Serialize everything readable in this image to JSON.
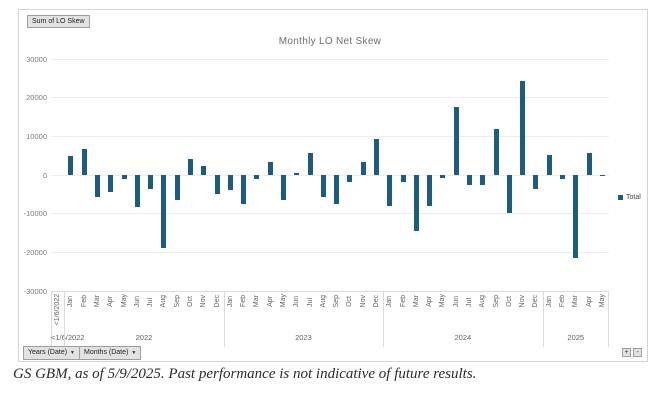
{
  "pivot_controls": {
    "value_field_label": "Sum of LO Skew",
    "years_field_label": "Years (Date)",
    "months_field_label": "Months (Date)",
    "expand_label": "+",
    "collapse_label": "-"
  },
  "legend": {
    "label": "Total",
    "color": "#1d5c7e",
    "position": "right"
  },
  "caption": "GS GBM, as of 5/9/2025. Past performance is not indicative of future results.",
  "chart_data": {
    "type": "bar",
    "title": "Monthly LO Net Skew",
    "series_name": "Total",
    "bar_color": "#1d5c7e",
    "ylim": [
      -30000,
      30000
    ],
    "yticks": [
      30000,
      20000,
      10000,
      0,
      -10000,
      -20000,
      -30000
    ],
    "grid": true,
    "legend_position": "right",
    "groups": [
      {
        "year": "<1/6/2022",
        "months": [
          "<1/6/2022"
        ],
        "values": [
          0
        ]
      },
      {
        "year": "2022",
        "months": [
          "Jan",
          "Feb",
          "Mar",
          "Apr",
          "May",
          "Jun",
          "Jul",
          "Aug",
          "Sep",
          "Oct",
          "Nov",
          "Dec"
        ],
        "values": [
          4800,
          6800,
          -5800,
          -4300,
          -1000,
          -8400,
          -3600,
          -19000,
          -6500,
          4200,
          2400,
          -4800
        ]
      },
      {
        "year": "2023",
        "months": [
          "Jan",
          "Feb",
          "Mar",
          "Apr",
          "May",
          "Jun",
          "Jul",
          "Aug",
          "Sep",
          "Oct",
          "Nov",
          "Dec"
        ],
        "values": [
          -3900,
          -7400,
          -1100,
          3300,
          -6500,
          500,
          5700,
          -5600,
          -7500,
          -1900,
          3300,
          9400
        ]
      },
      {
        "year": "2024",
        "months": [
          "Jan",
          "Feb",
          "Mar",
          "Apr",
          "May",
          "Jun",
          "Jul",
          "Aug",
          "Sep",
          "Oct",
          "Nov",
          "Dec"
        ],
        "values": [
          -8100,
          -1800,
          -14500,
          -8100,
          -800,
          17600,
          -2500,
          -2500,
          12000,
          -9700,
          24200,
          -3500
        ]
      },
      {
        "year": "2025",
        "months": [
          "Jan",
          "Feb",
          "Mar",
          "Apr",
          "May"
        ],
        "values": [
          5200,
          -1000,
          -21400,
          5700,
          -300
        ]
      }
    ]
  }
}
